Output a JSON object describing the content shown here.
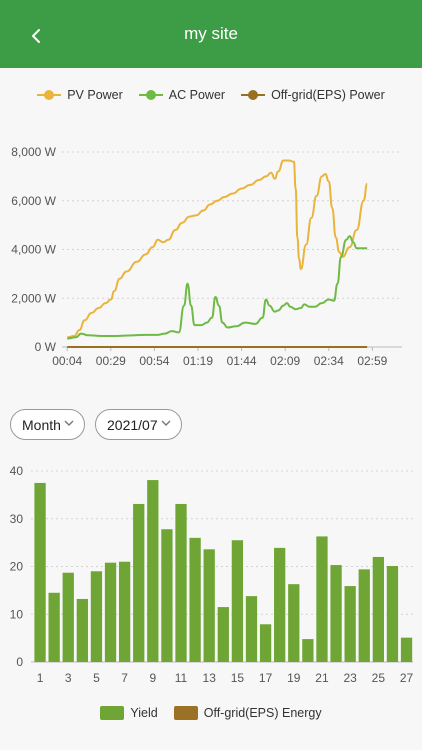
{
  "header": {
    "title": "my site",
    "back_icon": "chevron-left-icon"
  },
  "power_chart": {
    "legend": [
      {
        "name": "PV Power",
        "color": "#eab43c"
      },
      {
        "name": "AC Power",
        "color": "#6fba45"
      },
      {
        "name": "Off-grid(EPS) Power",
        "color": "#99701f"
      }
    ],
    "y_ticks": [
      "0 W",
      "2,000 W",
      "4,000 W",
      "6,000 W",
      "8,000 W"
    ],
    "x_ticks": [
      "00:04",
      "00:29",
      "00:54",
      "01:19",
      "01:44",
      "02:09",
      "02:34",
      "02:59"
    ]
  },
  "filters": {
    "period": {
      "value": "Month"
    },
    "date": {
      "value": "2021/07"
    }
  },
  "energy_chart": {
    "legend": [
      {
        "name": "Yield",
        "color": "#6fa534"
      },
      {
        "name": "Off-grid(EPS) Energy",
        "color": "#9a7125"
      }
    ],
    "y_ticks": [
      "0",
      "10",
      "20",
      "30",
      "40"
    ],
    "x_ticks": [
      "1",
      "3",
      "5",
      "7",
      "9",
      "11",
      "13",
      "15",
      "17",
      "19",
      "21",
      "23",
      "25",
      "27"
    ]
  },
  "chart_data": [
    {
      "type": "line",
      "y_unit": "W",
      "ylim": [
        0,
        8000
      ],
      "x_unit": "minutes since 00:04",
      "x_tick_values": [
        0,
        25,
        50,
        75,
        100,
        125,
        150,
        175
      ],
      "xlim": [
        -3,
        192
      ],
      "grid": true,
      "legend_position": "top",
      "series": [
        {
          "name": "PV Power",
          "color": "#eab43c",
          "points": [
            [
              0,
              400
            ],
            [
              4,
              450
            ],
            [
              7,
              700
            ],
            [
              10,
              1100
            ],
            [
              14,
              1400
            ],
            [
              18,
              1600
            ],
            [
              22,
              1800
            ],
            [
              25,
              1950
            ],
            [
              27,
              2300
            ],
            [
              30,
              2800
            ],
            [
              34,
              3100
            ],
            [
              40,
              3500
            ],
            [
              45,
              3800
            ],
            [
              49,
              4100
            ],
            [
              52,
              4400
            ],
            [
              55,
              4300
            ],
            [
              58,
              4400
            ],
            [
              62,
              4800
            ],
            [
              66,
              5100
            ],
            [
              70,
              5350
            ],
            [
              74,
              5400
            ],
            [
              78,
              5600
            ],
            [
              82,
              5850
            ],
            [
              86,
              6000
            ],
            [
              90,
              6150
            ],
            [
              95,
              6300
            ],
            [
              100,
              6500
            ],
            [
              105,
              6650
            ],
            [
              110,
              6850
            ],
            [
              114,
              7000
            ],
            [
              117,
              7150
            ],
            [
              119,
              6900
            ],
            [
              121,
              7200
            ],
            [
              124,
              7650
            ],
            [
              127,
              7650
            ],
            [
              130,
              7600
            ],
            [
              131,
              6500
            ],
            [
              132,
              4500
            ],
            [
              133,
              3600
            ],
            [
              134,
              3200
            ],
            [
              137,
              4200
            ],
            [
              140,
              5300
            ],
            [
              143,
              6200
            ],
            [
              146,
              7000
            ],
            [
              148,
              7100
            ],
            [
              150,
              6800
            ],
            [
              152,
              5700
            ],
            [
              154,
              4500
            ],
            [
              156,
              3900
            ],
            [
              158,
              3700
            ],
            [
              162,
              4100
            ],
            [
              166,
              4800
            ],
            [
              170,
              6000
            ],
            [
              172,
              6700
            ]
          ]
        },
        {
          "name": "AC Power",
          "color": "#6fba45",
          "points": [
            [
              0,
              350
            ],
            [
              5,
              400
            ],
            [
              8,
              550
            ],
            [
              12,
              480
            ],
            [
              20,
              450
            ],
            [
              28,
              450
            ],
            [
              35,
              470
            ],
            [
              45,
              500
            ],
            [
              52,
              500
            ],
            [
              56,
              550
            ],
            [
              60,
              650
            ],
            [
              64,
              600
            ],
            [
              67,
              1700
            ],
            [
              69,
              2600
            ],
            [
              71,
              1700
            ],
            [
              73,
              900
            ],
            [
              77,
              900
            ],
            [
              80,
              1000
            ],
            [
              83,
              1200
            ],
            [
              85,
              2050
            ],
            [
              87,
              1700
            ],
            [
              89,
              1000
            ],
            [
              92,
              800
            ],
            [
              97,
              850
            ],
            [
              102,
              1000
            ],
            [
              108,
              950
            ],
            [
              112,
              1200
            ],
            [
              114,
              1950
            ],
            [
              116,
              1700
            ],
            [
              119,
              1450
            ],
            [
              121,
              1500
            ],
            [
              124,
              1700
            ],
            [
              126,
              1800
            ],
            [
              128,
              1650
            ],
            [
              131,
              1550
            ],
            [
              134,
              1600
            ],
            [
              136,
              1750
            ],
            [
              139,
              1650
            ],
            [
              142,
              1650
            ],
            [
              146,
              1800
            ],
            [
              150,
              1950
            ],
            [
              153,
              1900
            ],
            [
              155,
              2600
            ],
            [
              157,
              3700
            ],
            [
              160,
              4400
            ],
            [
              162,
              4550
            ],
            [
              164,
              4300
            ],
            [
              166,
              4050
            ],
            [
              168,
              4050
            ],
            [
              172,
              4050
            ]
          ]
        },
        {
          "name": "Off-grid(EPS) Power",
          "color": "#99701f",
          "points": [
            [
              0,
              0
            ],
            [
              172,
              0
            ]
          ]
        }
      ]
    },
    {
      "type": "bar",
      "ylim": [
        0,
        40
      ],
      "grid": true,
      "legend_position": "bottom",
      "categories": [
        1,
        2,
        3,
        4,
        5,
        6,
        7,
        8,
        9,
        10,
        11,
        12,
        13,
        14,
        15,
        16,
        17,
        18,
        19,
        20,
        21,
        22,
        23,
        24,
        25,
        26,
        27
      ],
      "series": [
        {
          "name": "Yield",
          "color": "#6fa534",
          "values": [
            37.5,
            14.5,
            18.7,
            13.2,
            19,
            20.8,
            21,
            33.1,
            38.1,
            27.8,
            33.1,
            26,
            23.6,
            11.5,
            25.5,
            13.8,
            7.9,
            23.9,
            16.3,
            4.8,
            26.3,
            20.3,
            15.9,
            19.4,
            22,
            20.1,
            5.1
          ]
        },
        {
          "name": "Off-grid(EPS) Energy",
          "color": "#9a7125",
          "values": [
            0,
            0,
            0,
            0,
            0,
            0,
            0,
            0,
            0,
            0,
            0,
            0,
            0,
            0,
            0,
            0,
            0,
            0,
            0,
            0,
            0,
            0,
            0,
            0,
            0,
            0,
            0
          ]
        }
      ]
    }
  ]
}
